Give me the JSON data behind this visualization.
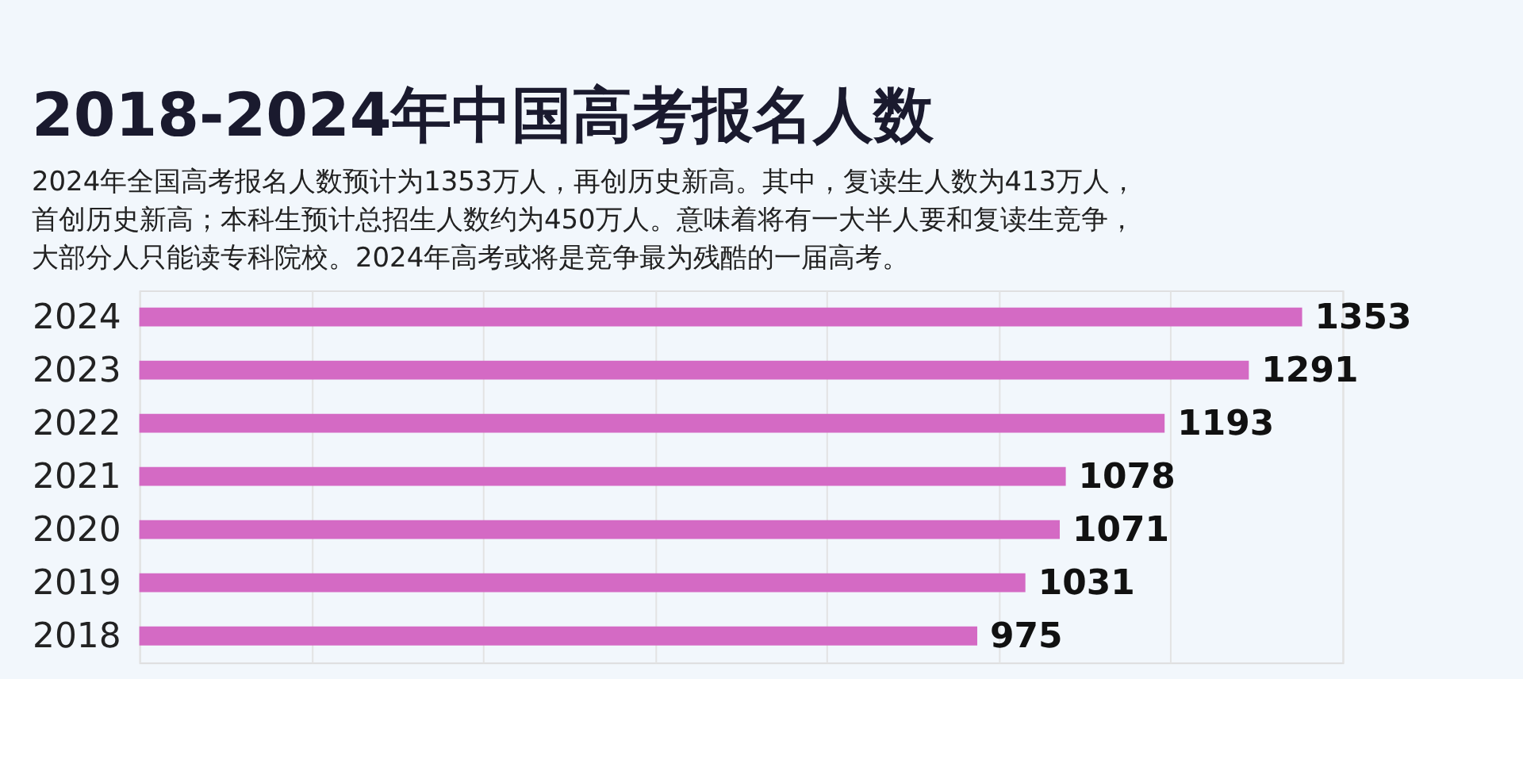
{
  "chart_data": {
    "type": "bar",
    "orientation": "horizontal",
    "title": "2018-2024年中国高考报名人数",
    "subtitle": [
      "2024年全国高考报名人数预计为1353万人，再创历史新高。其中，复读生人数为413万人，",
      "首创历史新高；本科生预计总招生人数约为450万人。意味着将有一大半人要和复读生竞争，",
      "大部分人只能读专科院校。2024年高考或将是竞争最为残酷的一届高考。"
    ],
    "categories": [
      "2024",
      "2023",
      "2022",
      "2021",
      "2020",
      "2019",
      "2018"
    ],
    "values": [
      1353,
      1291,
      1193,
      1078,
      1071,
      1031,
      975
    ],
    "color": "#d46ac4",
    "xlim": [
      0,
      1400
    ],
    "xticks": [
      {
        "value": 0,
        "label": null
      },
      {
        "value": 200,
        "label": null
      },
      {
        "value": 400,
        "label": null
      },
      {
        "value": 600,
        "label": null
      },
      {
        "value": 800,
        "label": null
      },
      {
        "value": 1000,
        "label": null
      },
      {
        "value": 1200,
        "label": null
      },
      {
        "value": 1400,
        "label": null
      }
    ],
    "tick_labels": "y",
    "grid": "x",
    "data_labels": true
  }
}
